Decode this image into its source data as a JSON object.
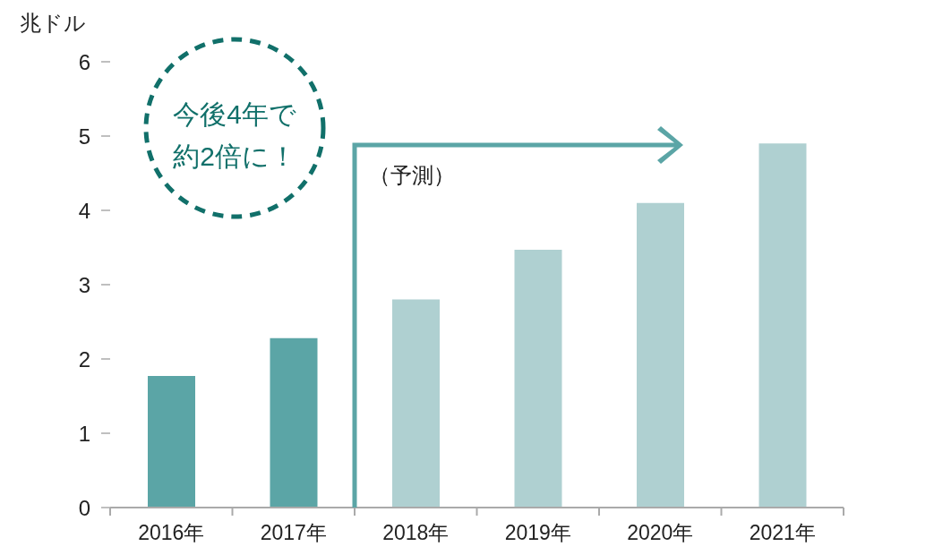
{
  "chart_data": {
    "type": "bar",
    "ylabel": "兆ドル",
    "categories": [
      "2016年",
      "2017年",
      "2018年",
      "2019年",
      "2020年",
      "2021年"
    ],
    "values": [
      1.77,
      2.28,
      2.8,
      3.47,
      4.1,
      4.9
    ],
    "colors": [
      "#5ba5a6",
      "#5ba5a6",
      "#afd0d1",
      "#afd0d1",
      "#afd0d1",
      "#afd0d1"
    ],
    "ylim": [
      0,
      6
    ],
    "yticks": [
      0,
      1,
      2,
      3,
      4,
      5,
      6
    ],
    "annotations": [
      "今後4年で",
      "約2倍に！",
      "（予測）"
    ]
  }
}
